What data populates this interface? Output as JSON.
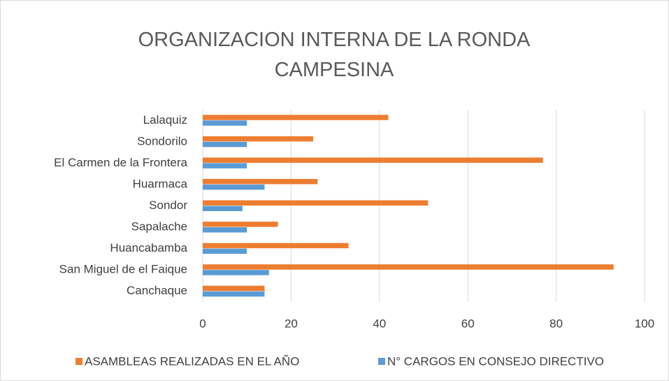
{
  "chart_data": {
    "type": "bar",
    "orientation": "horizontal",
    "title": "ORGANIZACION INTERNA DE LA RONDA CAMPESINA",
    "categories": [
      "Lalaquiz",
      "Sondorilo",
      "El Carmen de la Frontera",
      "Huarmaca",
      "Sondor",
      "Sapalache",
      "Huancabamba",
      "San Miguel de el Faique",
      "Canchaque"
    ],
    "series": [
      {
        "name": "ASAMBLEAS REALIZADAS EN EL AÑO",
        "color": "#ED7D31",
        "values": [
          42,
          25,
          77,
          26,
          51,
          17,
          33,
          93,
          14
        ]
      },
      {
        "name": "N° CARGOS EN CONSEJO DIRECTIVO",
        "color": "#5B9BD5",
        "values": [
          10,
          10,
          10,
          14,
          9,
          10,
          10,
          15,
          14
        ]
      }
    ],
    "xlim": [
      0,
      100
    ],
    "xticks": [
      0,
      20,
      40,
      60,
      80,
      100
    ],
    "grid": true,
    "legend": "bottom"
  }
}
